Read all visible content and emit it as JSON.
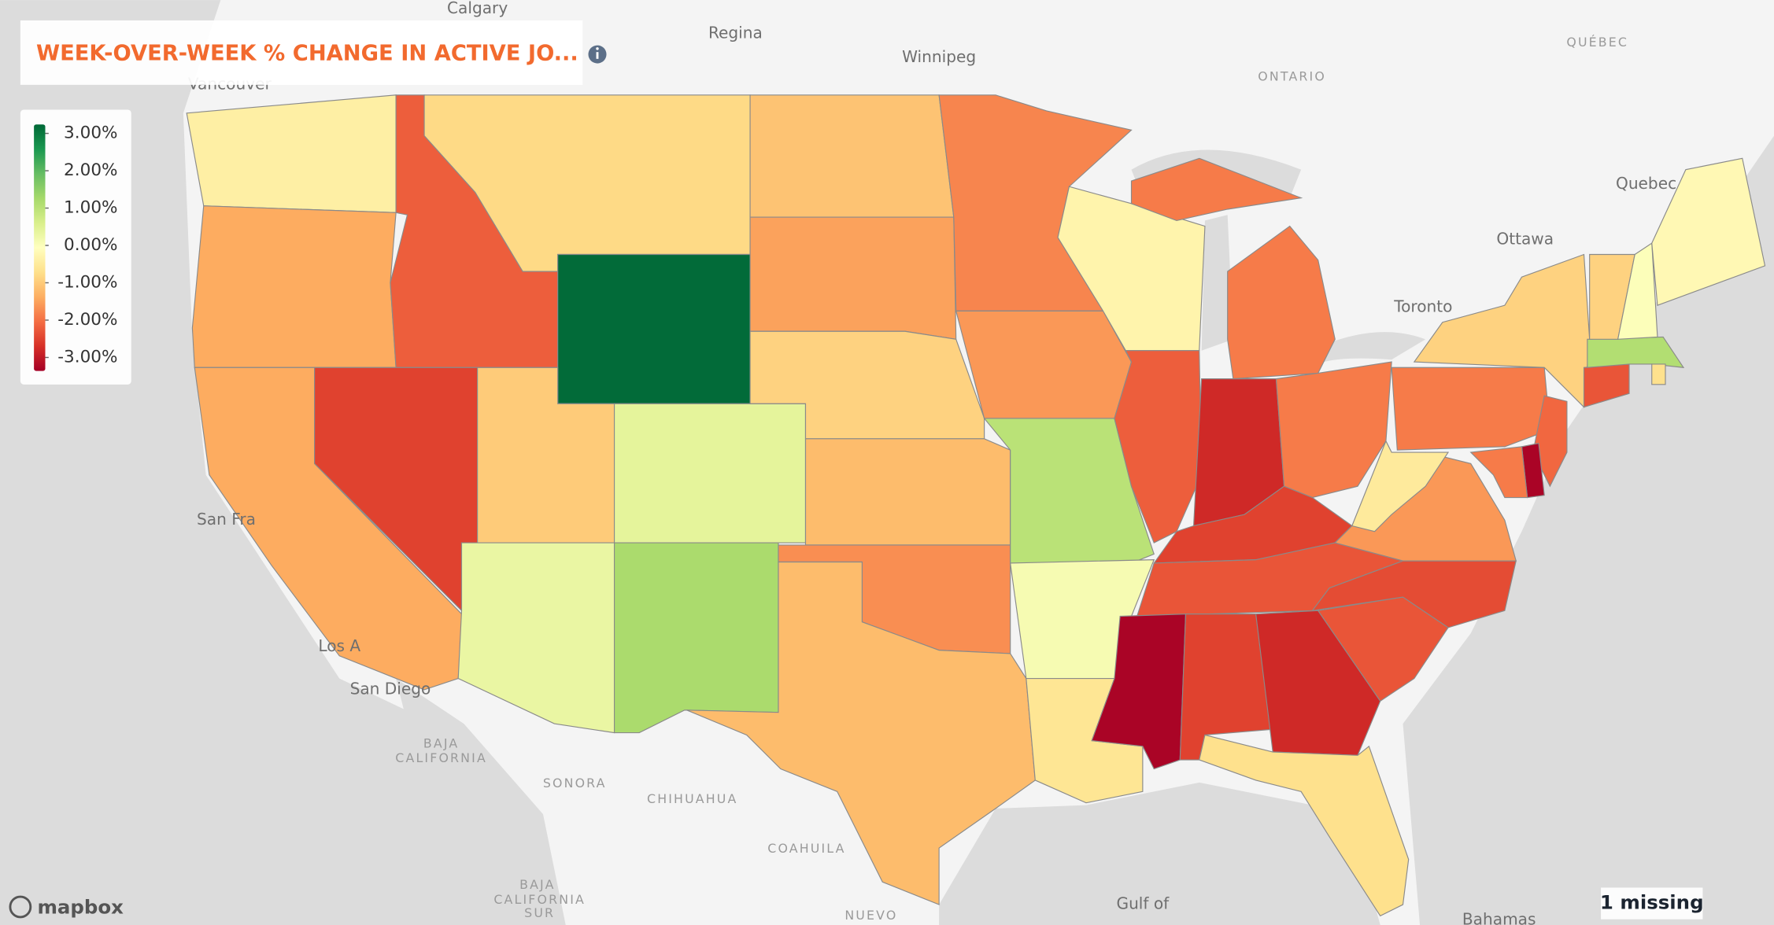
{
  "chart_data": {
    "type": "choropleth",
    "title": "WEEK-OVER-WEEK % CHANGE IN ACTIVE JO...",
    "values": [
      -0.4,
      -1.4,
      -1.4,
      -2.2,
      -2.5,
      -0.8,
      3.2,
      -1.0,
      0.3,
      0.4,
      1.2,
      -1.1,
      -1.5,
      -0.9,
      -1.2,
      -1.7,
      -1.2,
      -1.8,
      -1.6,
      1.0,
      0.1,
      -0.6,
      -0.3,
      -2.2,
      -1.9,
      -2.8,
      -1.9,
      -2.5,
      -2.3,
      -3.3,
      -2.5,
      -2.8,
      -0.7,
      -2.3,
      -2.4,
      -1.6,
      -0.5,
      -1.9,
      -0.9,
      -2.1,
      -3.3,
      -1.9,
      -2.3,
      1.1,
      -0.9,
      0.0,
      -0.2,
      -0.7
    ],
    "colorscale": [
      "#a50026",
      "#d73027",
      "#f46d43",
      "#fdae61",
      "#fee08b",
      "#ffffbf",
      "#d9ef8b",
      "#a6d96a",
      "#66bd63",
      "#1a9850",
      "#006837"
    ],
    "zlim": [
      -3.36,
      3.24
    ],
    "zticks": [
      {
        "value": 3,
        "label": "3.00%"
      },
      {
        "value": 2,
        "label": "2.00%"
      },
      {
        "value": 1,
        "label": "1.00%"
      },
      {
        "value": 0,
        "label": "0.00%"
      },
      {
        "value": -1,
        "label": "-1.00%"
      },
      {
        "value": -2,
        "label": "-2.00%"
      },
      {
        "value": -3,
        "label": "-3.00%"
      }
    ],
    "missing_note": "1 missing",
    "attribution": "mapbox",
    "places": [
      "Calgary",
      "Regina",
      "Winnipeg",
      "Vancouver",
      "ONTARIO",
      "QUÉBEC",
      "Quebec",
      "Ottawa",
      "Toronto",
      "San Fra",
      "Los A",
      "San Diego",
      "BAJA",
      "CALIFORNIA",
      "SONORA",
      "CHIHUAHUA",
      "COAHUILA",
      "BAJA",
      "CALIFORNIA",
      "SUR",
      "NUEVO",
      "Gulf of",
      "Bahamas"
    ]
  }
}
